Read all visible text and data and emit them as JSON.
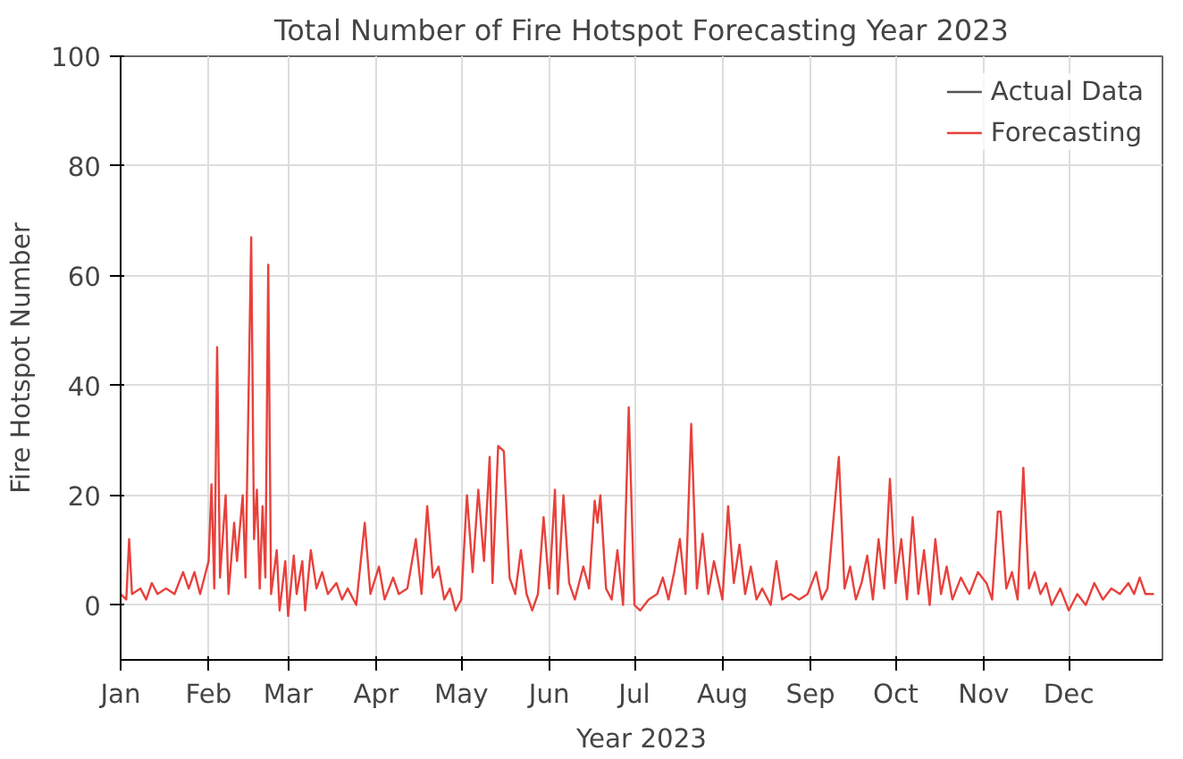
{
  "chart_data": {
    "type": "line",
    "title": "Total Number of Fire Hotspot Forecasting Year 2023",
    "xlabel": "Year 2023",
    "ylabel": "Fire Hotspot Number",
    "x": [
      "2023-01-01",
      "2023-01-03",
      "2023-01-04",
      "2023-01-05",
      "2023-01-08",
      "2023-01-10",
      "2023-01-12",
      "2023-01-14",
      "2023-01-17",
      "2023-01-20",
      "2023-01-23",
      "2023-01-25",
      "2023-01-27",
      "2023-01-29",
      "2023-02-01",
      "2023-02-02",
      "2023-02-03",
      "2023-02-04",
      "2023-02-05",
      "2023-02-07",
      "2023-02-08",
      "2023-02-10",
      "2023-02-11",
      "2023-02-13",
      "2023-02-14",
      "2023-02-16",
      "2023-02-17",
      "2023-02-18",
      "2023-02-19",
      "2023-02-20",
      "2023-02-21",
      "2023-02-22",
      "2023-02-23",
      "2023-02-25",
      "2023-02-26",
      "2023-02-28",
      "2023-03-01",
      "2023-03-03",
      "2023-03-04",
      "2023-03-06",
      "2023-03-07",
      "2023-03-09",
      "2023-03-11",
      "2023-03-13",
      "2023-03-15",
      "2023-03-18",
      "2023-03-20",
      "2023-03-22",
      "2023-03-25",
      "2023-03-28",
      "2023-03-30",
      "2023-04-02",
      "2023-04-04",
      "2023-04-07",
      "2023-04-09",
      "2023-04-12",
      "2023-04-15",
      "2023-04-17",
      "2023-04-19",
      "2023-04-21",
      "2023-04-23",
      "2023-04-25",
      "2023-04-27",
      "2023-04-29",
      "2023-05-01",
      "2023-05-03",
      "2023-05-05",
      "2023-05-07",
      "2023-05-09",
      "2023-05-11",
      "2023-05-12",
      "2023-05-14",
      "2023-05-16",
      "2023-05-18",
      "2023-05-20",
      "2023-05-22",
      "2023-05-24",
      "2023-05-26",
      "2023-05-28",
      "2023-05-30",
      "2023-06-01",
      "2023-06-03",
      "2023-06-04",
      "2023-06-06",
      "2023-06-08",
      "2023-06-10",
      "2023-06-13",
      "2023-06-15",
      "2023-06-17",
      "2023-06-18",
      "2023-06-19",
      "2023-06-21",
      "2023-06-23",
      "2023-06-25",
      "2023-06-27",
      "2023-06-29",
      "2023-07-01",
      "2023-07-03",
      "2023-07-06",
      "2023-07-09",
      "2023-07-11",
      "2023-07-13",
      "2023-07-15",
      "2023-07-17",
      "2023-07-19",
      "2023-07-21",
      "2023-07-23",
      "2023-07-25",
      "2023-07-27",
      "2023-07-29",
      "2023-08-01",
      "2023-08-03",
      "2023-08-05",
      "2023-08-07",
      "2023-08-09",
      "2023-08-11",
      "2023-08-13",
      "2023-08-15",
      "2023-08-18",
      "2023-08-20",
      "2023-08-22",
      "2023-08-25",
      "2023-08-28",
      "2023-08-31",
      "2023-09-03",
      "2023-09-05",
      "2023-09-07",
      "2023-09-09",
      "2023-09-11",
      "2023-09-13",
      "2023-09-15",
      "2023-09-17",
      "2023-09-19",
      "2023-09-21",
      "2023-09-23",
      "2023-09-25",
      "2023-09-27",
      "2023-09-29",
      "2023-10-01",
      "2023-10-03",
      "2023-10-05",
      "2023-10-07",
      "2023-10-09",
      "2023-10-11",
      "2023-10-13",
      "2023-10-15",
      "2023-10-17",
      "2023-10-19",
      "2023-10-21",
      "2023-10-24",
      "2023-10-27",
      "2023-10-30",
      "2023-11-02",
      "2023-11-04",
      "2023-11-06",
      "2023-11-07",
      "2023-11-09",
      "2023-11-11",
      "2023-11-13",
      "2023-11-15",
      "2023-11-17",
      "2023-11-19",
      "2023-11-21",
      "2023-11-23",
      "2023-11-25",
      "2023-11-28",
      "2023-12-01",
      "2023-12-04",
      "2023-12-07",
      "2023-12-10",
      "2023-12-13",
      "2023-12-16",
      "2023-12-19",
      "2023-12-22",
      "2023-12-24",
      "2023-12-26",
      "2023-12-28",
      "2023-12-31"
    ],
    "series": [
      {
        "name": "Actual Data",
        "color": "#555555",
        "values": [
          null,
          null,
          null,
          null,
          null,
          null,
          null,
          null,
          null,
          null,
          null,
          null,
          null,
          null,
          null,
          null,
          null,
          null,
          null,
          null,
          null,
          null,
          null,
          null,
          null,
          null,
          null,
          null,
          null,
          null,
          null,
          null,
          null,
          null,
          null,
          null,
          null,
          null,
          null,
          null,
          null,
          null,
          null,
          null,
          null,
          null,
          null,
          null,
          null,
          null,
          null,
          null,
          null,
          null,
          null,
          null,
          null,
          null,
          null,
          null,
          null,
          null,
          null,
          null,
          null,
          null,
          null,
          null,
          null,
          null,
          null,
          null,
          null,
          null,
          null,
          null,
          null,
          null,
          null,
          null,
          null,
          null,
          null,
          null,
          null,
          null,
          null,
          null,
          null,
          null,
          null,
          null,
          null,
          null,
          null,
          null,
          null,
          null,
          null,
          null,
          null,
          null,
          null,
          null,
          null,
          null,
          null,
          null,
          null,
          null,
          null,
          null,
          null,
          null,
          null,
          null,
          null,
          null,
          null,
          null,
          null,
          null,
          null,
          null,
          null,
          null,
          null,
          null,
          null,
          null,
          null,
          null,
          null,
          null,
          null,
          null,
          null,
          null,
          null,
          null,
          null,
          null,
          null,
          null,
          null,
          null,
          null,
          null,
          null,
          null,
          null,
          null,
          null,
          null,
          null,
          null,
          null,
          null,
          null,
          null,
          null,
          null,
          null,
          null,
          null,
          null,
          null,
          null,
          null,
          null,
          null,
          null,
          null,
          null,
          null,
          null,
          null,
          null
        ]
      },
      {
        "name": "Forecasting",
        "color": "#e8413c",
        "values": [
          2,
          1,
          12,
          2,
          3,
          1,
          4,
          2,
          3,
          2,
          6,
          3,
          6,
          2,
          8,
          22,
          3,
          47,
          5,
          20,
          2,
          15,
          8,
          20,
          5,
          67,
          12,
          21,
          3,
          18,
          5,
          62,
          2,
          10,
          -1,
          8,
          -2,
          9,
          2,
          8,
          -1,
          10,
          3,
          6,
          2,
          4,
          1,
          3,
          0,
          15,
          2,
          7,
          1,
          5,
          2,
          3,
          12,
          2,
          18,
          5,
          7,
          1,
          3,
          -1,
          1,
          20,
          6,
          21,
          8,
          27,
          4,
          29,
          28,
          5,
          2,
          10,
          2,
          -1,
          2,
          16,
          3,
          21,
          2,
          20,
          4,
          1,
          7,
          3,
          19,
          15,
          20,
          3,
          1,
          10,
          0,
          36,
          0,
          -1,
          1,
          2,
          5,
          1,
          6,
          12,
          2,
          33,
          3,
          13,
          2,
          8,
          1,
          18,
          4,
          11,
          2,
          7,
          1,
          3,
          0,
          8,
          1,
          2,
          1,
          2,
          6,
          1,
          3,
          15,
          27,
          3,
          7,
          1,
          4,
          9,
          1,
          12,
          3,
          23,
          4,
          12,
          1,
          16,
          2,
          10,
          0,
          12,
          2,
          7,
          1,
          5,
          2,
          6,
          4,
          1,
          17,
          17,
          3,
          6,
          1,
          25,
          3,
          6,
          2,
          4,
          0,
          3,
          -1,
          2,
          0,
          4,
          1,
          3,
          2,
          4,
          2,
          5,
          2,
          2
        ]
      }
    ],
    "xlim": [
      "2023-01-01",
      "2024-01-03"
    ],
    "xticks": [
      {
        "value": "2023-01-01",
        "label": "Jan"
      },
      {
        "value": "2023-02-01",
        "label": "Feb"
      },
      {
        "value": "2023-03-01",
        "label": "Mar"
      },
      {
        "value": "2023-04-01",
        "label": "Apr"
      },
      {
        "value": "2023-05-01",
        "label": "May"
      },
      {
        "value": "2023-06-01",
        "label": "Jun"
      },
      {
        "value": "2023-07-01",
        "label": "Jul"
      },
      {
        "value": "2023-08-01",
        "label": "Aug"
      },
      {
        "value": "2023-09-01",
        "label": "Sep"
      },
      {
        "value": "2023-10-01",
        "label": "Oct"
      },
      {
        "value": "2023-11-01",
        "label": "Nov"
      },
      {
        "value": "2023-12-01",
        "label": "Dec"
      }
    ],
    "ylim": [
      -10,
      100
    ],
    "yticks": [
      0,
      20,
      40,
      60,
      80,
      100
    ],
    "grid": true,
    "legend": "top right",
    "marker": "none",
    "line_style": "solid"
  }
}
